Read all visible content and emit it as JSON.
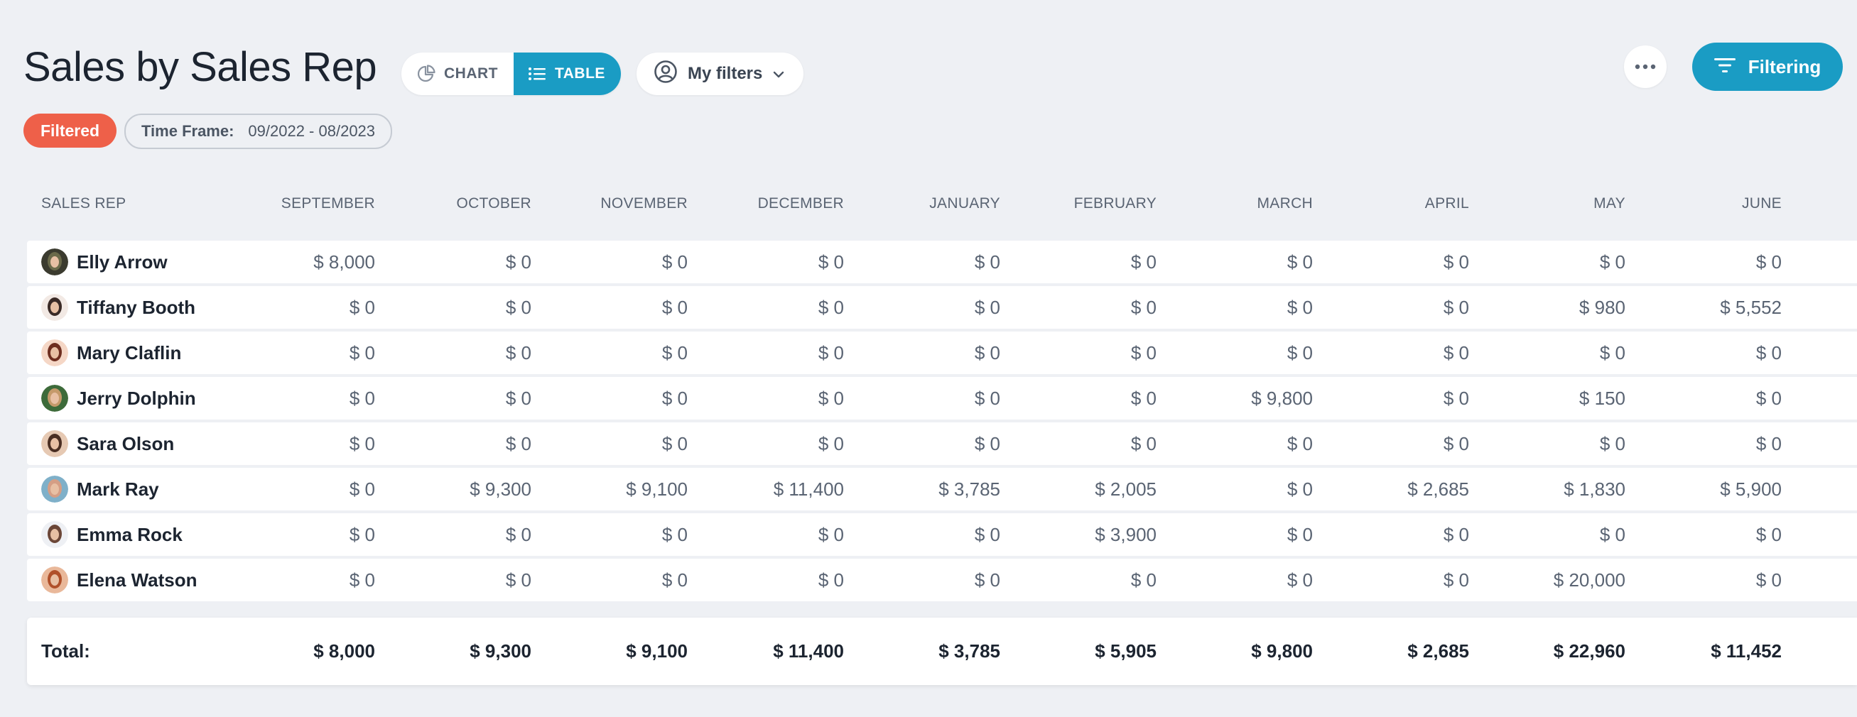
{
  "header": {
    "title": "Sales by Sales Rep",
    "view_toggle": {
      "chart_label": "CHART",
      "table_label": "TABLE",
      "active": "table"
    },
    "my_filters_label": "My filters",
    "filtering_label": "Filtering"
  },
  "badges": {
    "filtered": "Filtered",
    "time_frame_label": "Time Frame:",
    "time_frame_value": "09/2022 - 08/2023"
  },
  "colors": {
    "accent": "#1a9cc4",
    "filtered_badge": "#ee6049",
    "background": "#eef0f4"
  },
  "table": {
    "columns": [
      "SALES REP",
      "SEPTEMBER",
      "OCTOBER",
      "NOVEMBER",
      "DECEMBER",
      "JANUARY",
      "FEBRUARY",
      "MARCH",
      "APRIL",
      "MAY",
      "JUNE"
    ],
    "rows": [
      {
        "name": "Elly Arrow",
        "avatar": "avatar-elly-arrow",
        "values": [
          "$ 8,000",
          "$ 0",
          "$ 0",
          "$ 0",
          "$ 0",
          "$ 0",
          "$ 0",
          "$ 0",
          "$ 0",
          "$ 0"
        ]
      },
      {
        "name": "Tiffany Booth",
        "avatar": "avatar-tiffany-booth",
        "values": [
          "$ 0",
          "$ 0",
          "$ 0",
          "$ 0",
          "$ 0",
          "$ 0",
          "$ 0",
          "$ 0",
          "$ 980",
          "$ 5,552"
        ]
      },
      {
        "name": "Mary Claflin",
        "avatar": "avatar-mary-claflin",
        "values": [
          "$ 0",
          "$ 0",
          "$ 0",
          "$ 0",
          "$ 0",
          "$ 0",
          "$ 0",
          "$ 0",
          "$ 0",
          "$ 0"
        ]
      },
      {
        "name": "Jerry Dolphin",
        "avatar": "avatar-jerry-dolphin",
        "values": [
          "$ 0",
          "$ 0",
          "$ 0",
          "$ 0",
          "$ 0",
          "$ 0",
          "$ 9,800",
          "$ 0",
          "$ 150",
          "$ 0"
        ]
      },
      {
        "name": "Sara Olson",
        "avatar": "avatar-sara-olson",
        "values": [
          "$ 0",
          "$ 0",
          "$ 0",
          "$ 0",
          "$ 0",
          "$ 0",
          "$ 0",
          "$ 0",
          "$ 0",
          "$ 0"
        ]
      },
      {
        "name": "Mark Ray",
        "avatar": "avatar-mark-ray",
        "values": [
          "$ 0",
          "$ 9,300",
          "$ 9,100",
          "$ 11,400",
          "$ 3,785",
          "$ 2,005",
          "$ 0",
          "$ 2,685",
          "$ 1,830",
          "$ 5,900"
        ]
      },
      {
        "name": "Emma Rock",
        "avatar": "avatar-emma-rock",
        "values": [
          "$ 0",
          "$ 0",
          "$ 0",
          "$ 0",
          "$ 0",
          "$ 3,900",
          "$ 0",
          "$ 0",
          "$ 0",
          "$ 0"
        ]
      },
      {
        "name": "Elena Watson",
        "avatar": "avatar-elena-watson",
        "values": [
          "$ 0",
          "$ 0",
          "$ 0",
          "$ 0",
          "$ 0",
          "$ 0",
          "$ 0",
          "$ 0",
          "$ 20,000",
          "$ 0"
        ]
      }
    ],
    "total_label": "Total:",
    "totals": [
      "$ 8,000",
      "$ 9,300",
      "$ 9,100",
      "$ 11,400",
      "$ 3,785",
      "$ 5,905",
      "$ 9,800",
      "$ 2,685",
      "$ 22,960",
      "$ 11,452"
    ]
  }
}
